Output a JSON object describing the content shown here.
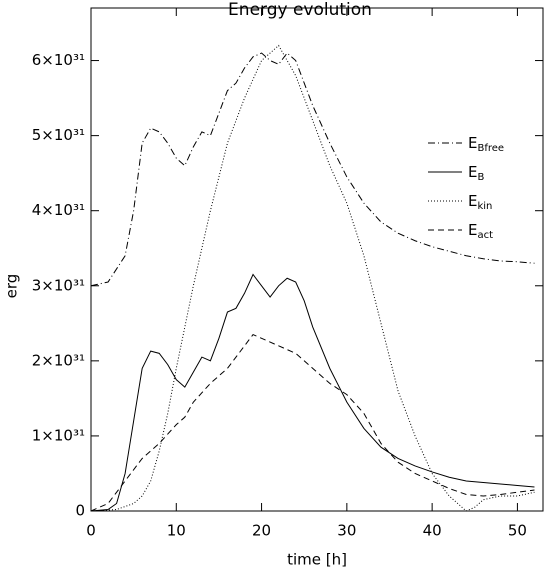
{
  "chart_data": {
    "type": "line",
    "title": "Energy evolution",
    "x_label": "time [h]",
    "y_label": "erg",
    "xlim": [
      0,
      53
    ],
    "xticks": [
      0,
      10,
      20,
      30,
      40,
      50
    ],
    "ylim": [
      0,
      6.7e+31
    ],
    "yticks": [
      0,
      {
        "value": 1e+31,
        "label": "1×10³¹"
      },
      {
        "value": 2e+31,
        "label": "2×10³¹"
      },
      {
        "value": 3e+31,
        "label": "3×10³¹"
      },
      {
        "value": 4e+31,
        "label": "4×10³¹"
      },
      {
        "value": 5e+31,
        "label": "5×10³¹"
      },
      {
        "value": 6e+31,
        "label": "6×10³¹"
      }
    ],
    "series": [
      {
        "name": "E",
        "subscript": "Bfree",
        "color": "#000000",
        "linestyle": "dashdot",
        "x": [
          0,
          2,
          4,
          5,
          6,
          7,
          8,
          9,
          10,
          11,
          12,
          13,
          14,
          15,
          16,
          17,
          18,
          19,
          20,
          21,
          22,
          23,
          24,
          25,
          26,
          28,
          30,
          32,
          34,
          36,
          38,
          40,
          42,
          44,
          46,
          48,
          50,
          52
        ],
        "values": [
          3e+31,
          3.05e+31,
          3.4e+31,
          4e+31,
          4.9e+31,
          5.1e+31,
          5.05e+31,
          4.9e+31,
          4.7e+31,
          4.6e+31,
          4.85e+31,
          5.05e+31,
          5e+31,
          5.3e+31,
          5.6e+31,
          5.7e+31,
          5.9e+31,
          6.05e+31,
          6.1e+31,
          6e+31,
          5.95e+31,
          6.1e+31,
          6e+31,
          5.7e+31,
          5.4e+31,
          4.9e+31,
          4.45e+31,
          4.1e+31,
          3.85e+31,
          3.7e+31,
          3.6e+31,
          3.52e+31,
          3.46e+31,
          3.4e+31,
          3.36e+31,
          3.33e+31,
          3.32e+31,
          3.3e+31
        ]
      },
      {
        "name": "E",
        "subscript": "B",
        "color": "#000000",
        "linestyle": "solid",
        "x": [
          0,
          2,
          3,
          4,
          5,
          6,
          7,
          8,
          9,
          10,
          11,
          12,
          13,
          14,
          15,
          16,
          17,
          18,
          19,
          20,
          21,
          22,
          23,
          24,
          25,
          26,
          28,
          30,
          32,
          34,
          36,
          38,
          40,
          42,
          44,
          46,
          48,
          50,
          52
        ],
        "values": [
          0,
          2e+29,
          1e+30,
          5e+30,
          1.2e+31,
          1.9e+31,
          2.13e+31,
          2.1e+31,
          1.95e+31,
          1.75e+31,
          1.65e+31,
          1.85e+31,
          2.05e+31,
          2e+31,
          2.3e+31,
          2.65e+31,
          2.7e+31,
          2.9e+31,
          3.15e+31,
          3e+31,
          2.85e+31,
          3e+31,
          3.1e+31,
          3.05e+31,
          2.8e+31,
          2.45e+31,
          1.9e+31,
          1.45e+31,
          1.1e+31,
          8.5e+30,
          7e+30,
          6e+30,
          5.2e+30,
          4.5e+30,
          4e+30,
          3.8e+30,
          3.6e+30,
          3.4e+30,
          3.2e+30
        ]
      },
      {
        "name": "E",
        "subscript": "kin",
        "color": "#000000",
        "linestyle": "dotted",
        "x": [
          0,
          3,
          5,
          6,
          7,
          8,
          9,
          10,
          12,
          14,
          16,
          18,
          20,
          22,
          24,
          26,
          28,
          30,
          32,
          34,
          36,
          38,
          40,
          42,
          44,
          45,
          46,
          48,
          50,
          52
        ],
        "values": [
          0,
          2e+29,
          1e+30,
          2e+30,
          4e+30,
          8e+30,
          1.3e+31,
          1.9e+31,
          3e+31,
          4e+31,
          4.9e+31,
          5.5e+31,
          6e+31,
          6.2e+31,
          5.8e+31,
          5.2e+31,
          4.6e+31,
          4.1e+31,
          3.4e+31,
          2.5e+31,
          1.6e+31,
          1e+31,
          5e+30,
          2e+30,
          0,
          5e+29,
          1.5e+30,
          2e+30,
          2e+30,
          2.5e+30
        ]
      },
      {
        "name": "E",
        "subscript": "act",
        "color": "#000000",
        "linestyle": "dashed",
        "x": [
          0,
          2,
          4,
          6,
          8,
          10,
          11,
          12,
          14,
          16,
          18,
          19,
          20,
          22,
          24,
          26,
          28,
          30,
          32,
          34,
          36,
          38,
          40,
          42,
          44,
          46,
          48,
          50,
          52
        ],
        "values": [
          0,
          1e+30,
          4e+30,
          7e+30,
          9e+30,
          1.15e+31,
          1.25e+31,
          1.45e+31,
          1.7e+31,
          1.9e+31,
          2.2e+31,
          2.35e+31,
          2.3e+31,
          2.2e+31,
          2.1e+31,
          1.9e+31,
          1.7e+31,
          1.55e+31,
          1.3e+31,
          9e+30,
          6.5e+30,
          5e+30,
          4e+30,
          3e+30,
          2.2e+30,
          2e+30,
          2.2e+30,
          2.5e+30,
          2.8e+30
        ]
      }
    ]
  }
}
